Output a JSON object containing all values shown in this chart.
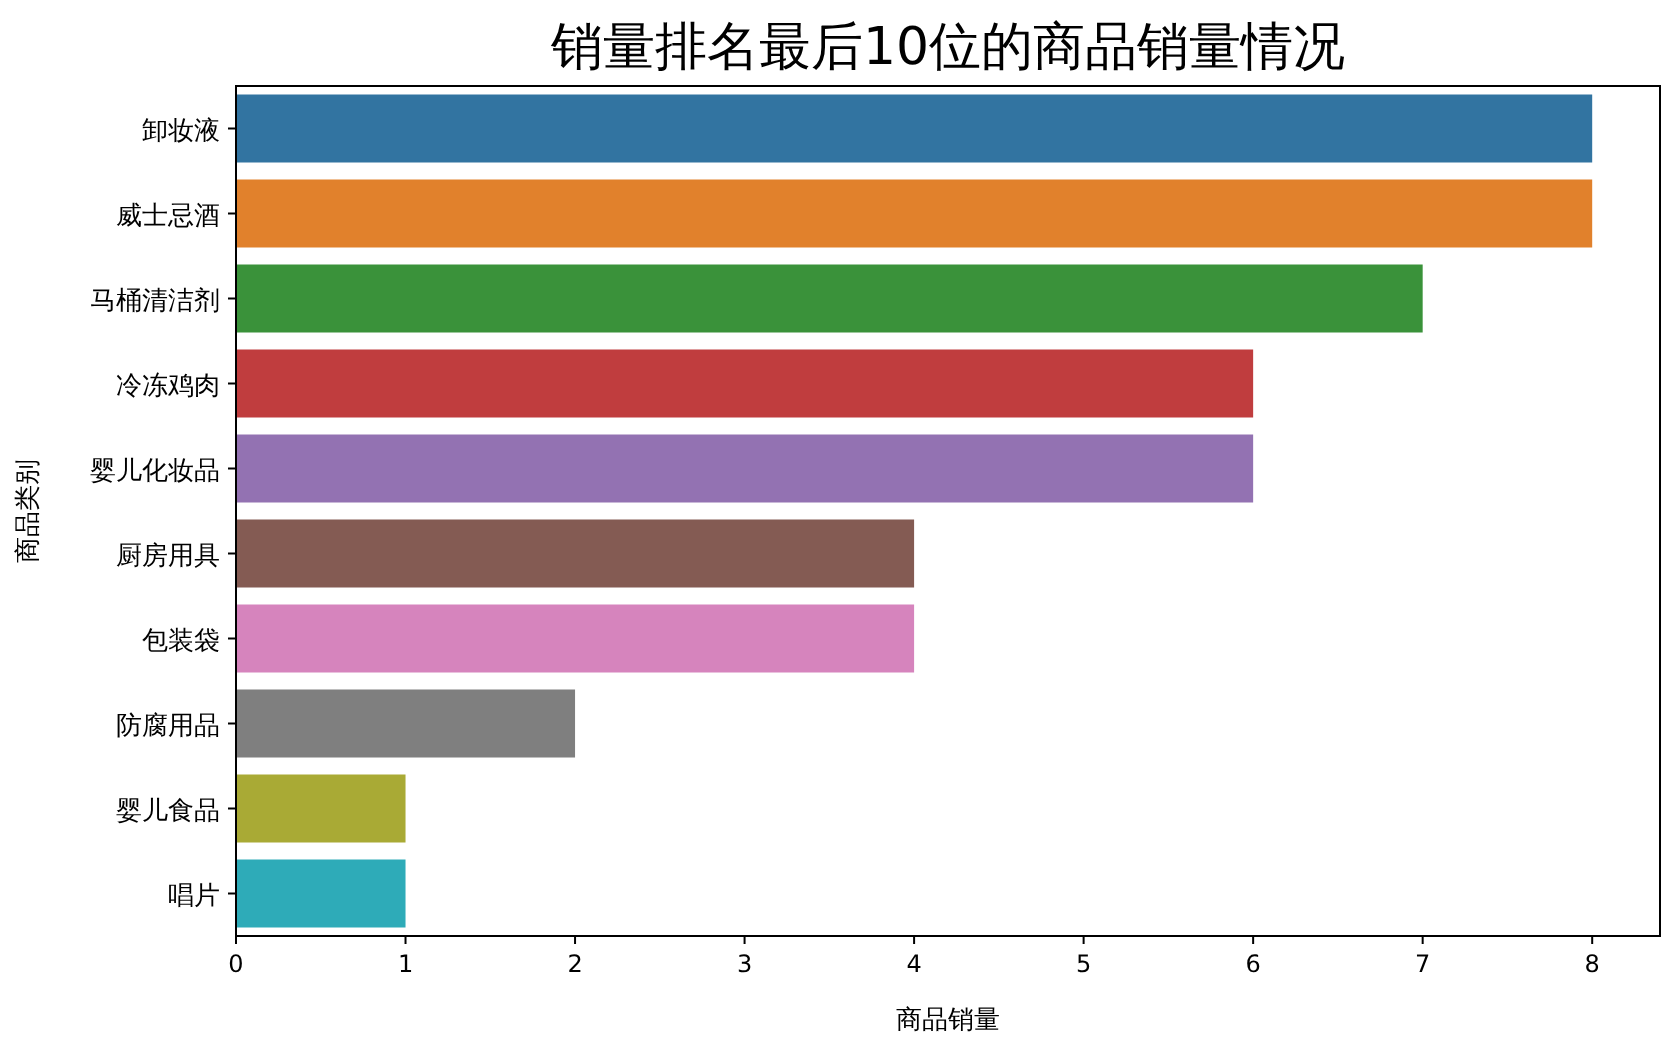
{
  "chart_data": {
    "type": "bar",
    "orientation": "horizontal",
    "title": "销量排名最后10位的商品销量情况",
    "xlabel": "商品销量",
    "ylabel": "商品类别",
    "categories": [
      "卸妆液",
      "威士忌酒",
      "马桶清洁剂",
      "冷冻鸡肉",
      "婴儿化妆品",
      "厨房用具",
      "包装袋",
      "防腐用品",
      "婴儿食品",
      "唱片"
    ],
    "values": [
      8,
      8,
      7,
      6,
      6,
      4,
      4,
      2,
      1,
      1
    ],
    "colors": [
      "#3274a1",
      "#e1812c",
      "#3a923a",
      "#c03d3e",
      "#9372b2",
      "#845b53",
      "#d684bd",
      "#7f7f7f",
      "#a9aa35",
      "#2eabb8"
    ],
    "xlim": [
      0,
      8.4
    ],
    "xticks": [
      0,
      1,
      2,
      3,
      4,
      5,
      6,
      7,
      8
    ]
  }
}
